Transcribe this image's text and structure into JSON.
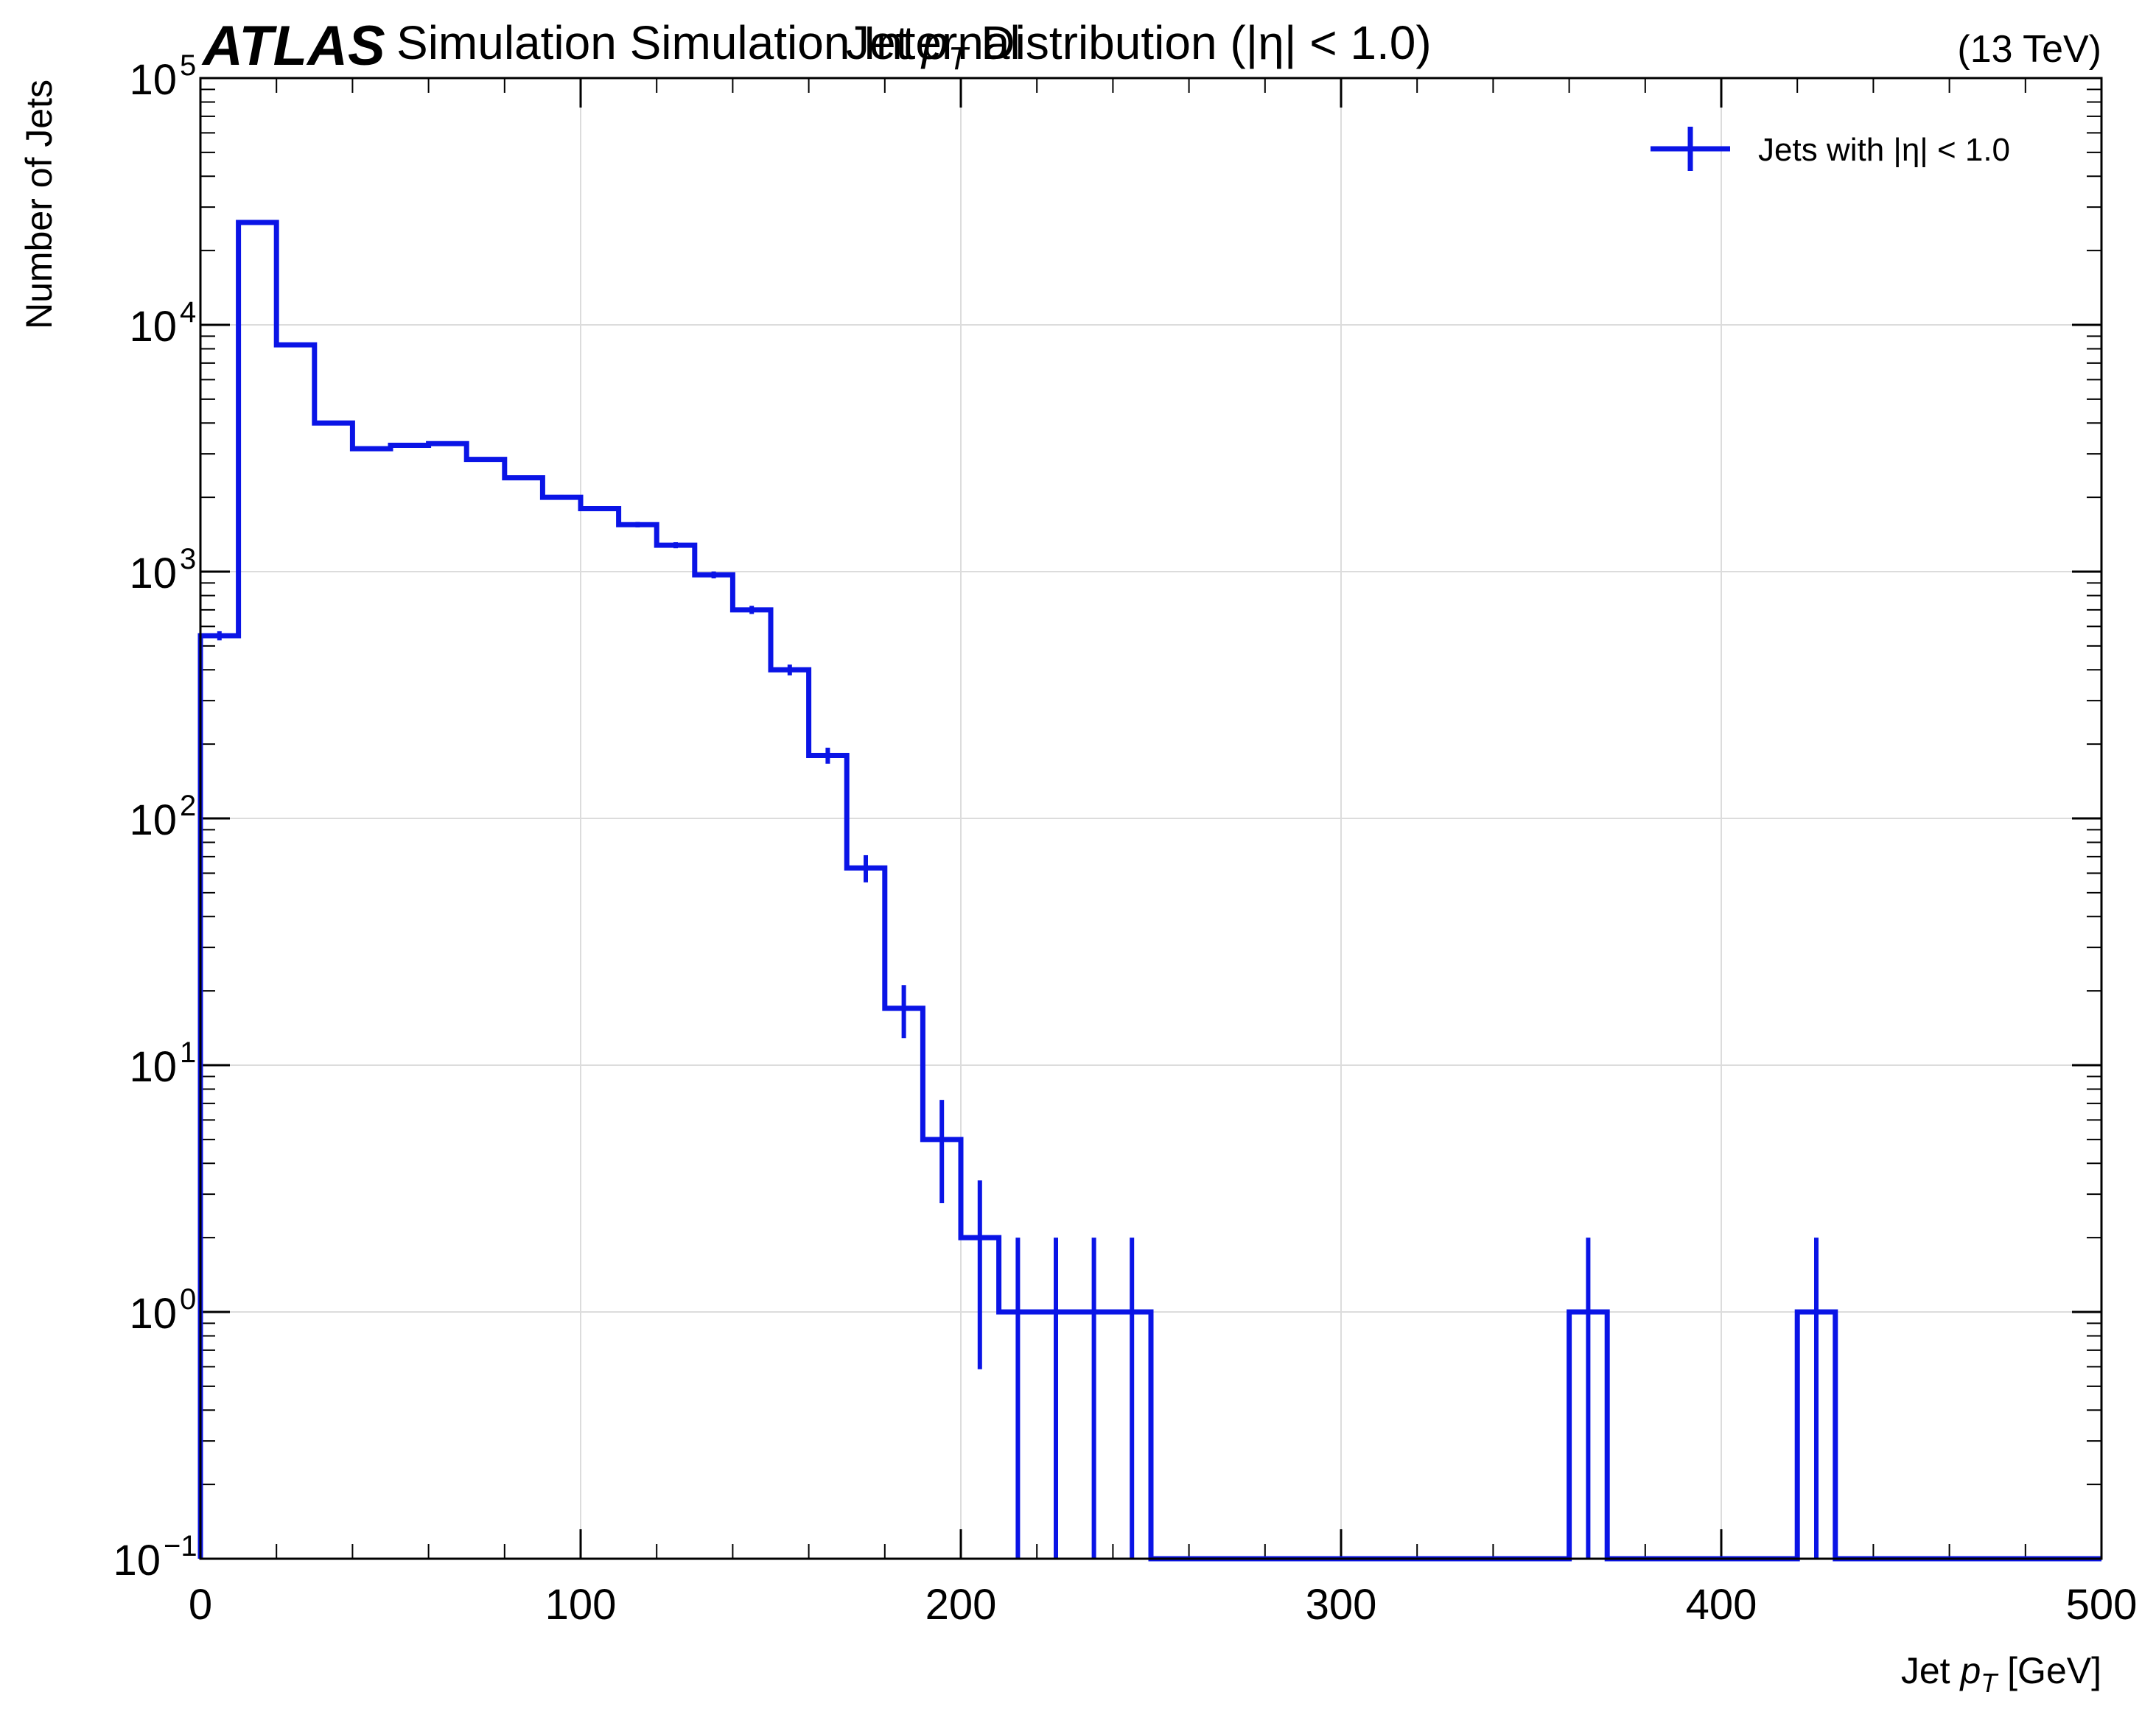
{
  "chart_data": {
    "type": "histogram-step",
    "experiment_label": "ATLAS",
    "status_label": "Simulation Simulation Internal",
    "title": "Jet pT Distribution (|η| < 1.0)",
    "title_parts": {
      "pre": "Jet ",
      "var": "p",
      "sub": "T",
      "post": " Distribution (|η| < 1.0)"
    },
    "energy_label": "(13 TeV)",
    "xlabel": "Jet pT [GeV]",
    "xlabel_parts": {
      "pre": "Jet ",
      "var": "p",
      "sub": "T",
      "post": " [GeV]"
    },
    "ylabel": "Number of Jets",
    "xlim": [
      0,
      500
    ],
    "ylim": [
      0.1,
      100000
    ],
    "yscale": "log",
    "grid": true,
    "legend_position": "top-right",
    "x_ticks": [
      "0",
      "100",
      "200",
      "300",
      "400",
      "500"
    ],
    "y_ticks": [
      {
        "base": "10",
        "exp": "−1"
      },
      {
        "base": "10",
        "exp": "0"
      },
      {
        "base": "10",
        "exp": "1"
      },
      {
        "base": "10",
        "exp": "2"
      },
      {
        "base": "10",
        "exp": "3"
      },
      {
        "base": "10",
        "exp": "4"
      },
      {
        "base": "10",
        "exp": "5"
      }
    ],
    "color": "#0a14e6",
    "series": [
      {
        "name": "Jets with |η| < 1.0",
        "bin_width": 10,
        "bin_edges": [
          0,
          10,
          20,
          30,
          40,
          50,
          60,
          70,
          80,
          90,
          100,
          110,
          120,
          130,
          140,
          150,
          160,
          170,
          180,
          190,
          200,
          210,
          220,
          230,
          240,
          250,
          260,
          270,
          280,
          290,
          300,
          310,
          320,
          330,
          340,
          350,
          360,
          370,
          380,
          390,
          400,
          410,
          420,
          430,
          440,
          450,
          460,
          470,
          480,
          490,
          500
        ],
        "values": [
          550,
          26000,
          8300,
          4000,
          3150,
          3250,
          3300,
          2850,
          2400,
          2000,
          1800,
          1550,
          1280,
          970,
          700,
          400,
          180,
          63,
          17,
          5,
          2,
          1,
          1,
          1,
          1,
          0,
          0,
          0,
          0,
          0,
          0,
          0,
          0,
          0,
          0,
          0,
          1,
          0,
          0,
          0,
          0,
          0,
          1,
          0,
          0,
          0,
          0,
          0,
          0,
          0
        ]
      }
    ]
  }
}
